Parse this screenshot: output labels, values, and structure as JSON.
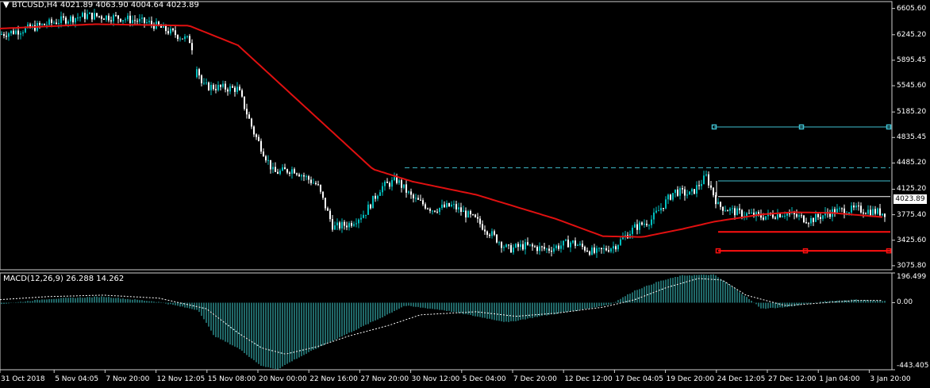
{
  "main_panel": {
    "header": "BTCUSD,H4",
    "ohlc": "4021.89 4063.90 4004.64 4023.89",
    "current_price": "4023.89",
    "y_ticks": [
      "6605.60",
      "6245.20",
      "5895.45",
      "5545.60",
      "5185.20",
      "4835.45",
      "4485.20",
      "4125.20",
      "3775.40",
      "3425.60",
      "3075.80"
    ]
  },
  "macd_panel": {
    "header": "MACD(12,26,9) 26.288 14.262",
    "y_ticks": [
      "196.499",
      "0.00",
      "-443.405"
    ]
  },
  "x_axis": {
    "labels": [
      "31 Oct 2018",
      "5 Nov 04:05",
      "7 Nov 20:00",
      "12 Nov 12:05",
      "15 Nov 08:00",
      "20 Nov 00:00",
      "22 Nov 16:00",
      "27 Nov 20:00",
      "30 Nov 12:00",
      "5 Dec 04:00",
      "7 Dec 20:00",
      "12 Dec 12:00",
      "17 Dec 04:05",
      "19 Dec 20:00",
      "24 Dec 12:05",
      "27 Dec 12:00",
      "1 Jan 04:00",
      "3 Jan 20:00"
    ]
  },
  "colors": {
    "background": "#000000",
    "bull_candle": "#00c0c0",
    "bear_candle": "#ffffff",
    "moving_average": "#e01010",
    "horizontal_lines_cyan": "#40c0d0",
    "horizontal_lines_red": "#ff1010",
    "macd_histogram": "#40d0d0",
    "macd_signal": "#ffffff"
  },
  "chart_data": {
    "type": "candlestick",
    "main": {
      "ylim": [
        3020,
        6700
      ],
      "moving_average": [
        [
          0,
          6330
        ],
        [
          120,
          6390
        ],
        [
          238,
          6370
        ],
        [
          300,
          6100
        ],
        [
          360,
          5500
        ],
        [
          420,
          4900
        ],
        [
          470,
          4400
        ],
        [
          520,
          4230
        ],
        [
          600,
          4050
        ],
        [
          700,
          3720
        ],
        [
          760,
          3480
        ],
        [
          810,
          3470
        ],
        [
          860,
          3580
        ],
        [
          900,
          3680
        ],
        [
          960,
          3780
        ],
        [
          1000,
          3810
        ],
        [
          1050,
          3800
        ],
        [
          1115,
          3740
        ]
      ],
      "candles_close_path": [
        [
          0,
          6250
        ],
        [
          40,
          6340
        ],
        [
          80,
          6450
        ],
        [
          110,
          6510
        ],
        [
          150,
          6480
        ],
        [
          190,
          6400
        ],
        [
          240,
          6160
        ],
        [
          255,
          5540
        ],
        [
          300,
          5500
        ],
        [
          320,
          4900
        ],
        [
          345,
          4350
        ],
        [
          370,
          4400
        ],
        [
          400,
          4180
        ],
        [
          420,
          3600
        ],
        [
          440,
          3650
        ],
        [
          460,
          3800
        ],
        [
          480,
          4150
        ],
        [
          500,
          4250
        ],
        [
          520,
          4000
        ],
        [
          545,
          3850
        ],
        [
          570,
          3900
        ],
        [
          600,
          3700
        ],
        [
          620,
          3500
        ],
        [
          640,
          3300
        ],
        [
          660,
          3350
        ],
        [
          690,
          3300
        ],
        [
          720,
          3400
        ],
        [
          750,
          3250
        ],
        [
          775,
          3350
        ],
        [
          800,
          3600
        ],
        [
          820,
          3700
        ],
        [
          850,
          4100
        ],
        [
          870,
          4050
        ],
        [
          890,
          4300
        ],
        [
          905,
          3900
        ],
        [
          930,
          3800
        ],
        [
          960,
          3750
        ],
        [
          990,
          3800
        ],
        [
          1020,
          3700
        ],
        [
          1050,
          3820
        ],
        [
          1080,
          3850
        ],
        [
          1115,
          3800
        ]
      ],
      "horizontal_lines": [
        {
          "color": "cyan",
          "style": "solid",
          "y": 4980,
          "x": [
            900,
            1122
          ],
          "markers": [
            900,
            1010,
            1120
          ]
        },
        {
          "color": "cyan",
          "style": "dashed",
          "y": 4420,
          "x": [
            510,
            1122
          ]
        },
        {
          "color": "cyan",
          "style": "solid",
          "y": 4240,
          "x": [
            905,
            1122
          ]
        },
        {
          "color": "white",
          "style": "solid",
          "y": 4023.89,
          "x": [
            905,
            1122
          ]
        },
        {
          "color": "red",
          "style": "solid",
          "y": 3540,
          "x": [
            905,
            1122
          ]
        },
        {
          "color": "red",
          "style": "solid",
          "y": 3280,
          "x": [
            905,
            1122
          ],
          "markers": [
            905,
            1015,
            1120
          ]
        }
      ]
    },
    "macd": {
      "ylim": [
        -443.405,
        196.499
      ],
      "histogram_profile": [
        [
          0,
          -10
        ],
        [
          60,
          25
        ],
        [
          130,
          40
        ],
        [
          200,
          5
        ],
        [
          250,
          -50
        ],
        [
          270,
          -220
        ],
        [
          300,
          -300
        ],
        [
          330,
          -420
        ],
        [
          350,
          -440
        ],
        [
          370,
          -380
        ],
        [
          400,
          -300
        ],
        [
          440,
          -200
        ],
        [
          480,
          -100
        ],
        [
          510,
          -20
        ],
        [
          560,
          -50
        ],
        [
          640,
          -130
        ],
        [
          680,
          -90
        ],
        [
          740,
          -40
        ],
        [
          770,
          -10
        ],
        [
          800,
          80
        ],
        [
          830,
          140
        ],
        [
          860,
          180
        ],
        [
          900,
          185
        ],
        [
          930,
          80
        ],
        [
          960,
          -40
        ],
        [
          990,
          -30
        ],
        [
          1040,
          10
        ],
        [
          1080,
          20
        ],
        [
          1115,
          10
        ]
      ],
      "signal_profile": [
        [
          0,
          20
        ],
        [
          60,
          40
        ],
        [
          130,
          50
        ],
        [
          200,
          30
        ],
        [
          260,
          -40
        ],
        [
          300,
          -200
        ],
        [
          330,
          -300
        ],
        [
          360,
          -340
        ],
        [
          400,
          -290
        ],
        [
          440,
          -220
        ],
        [
          490,
          -150
        ],
        [
          530,
          -80
        ],
        [
          600,
          -60
        ],
        [
          650,
          -90
        ],
        [
          700,
          -70
        ],
        [
          760,
          -30
        ],
        [
          800,
          20
        ],
        [
          840,
          100
        ],
        [
          880,
          160
        ],
        [
          910,
          150
        ],
        [
          940,
          50
        ],
        [
          990,
          -20
        ],
        [
          1040,
          0
        ],
        [
          1080,
          15
        ],
        [
          1115,
          15
        ]
      ]
    }
  }
}
